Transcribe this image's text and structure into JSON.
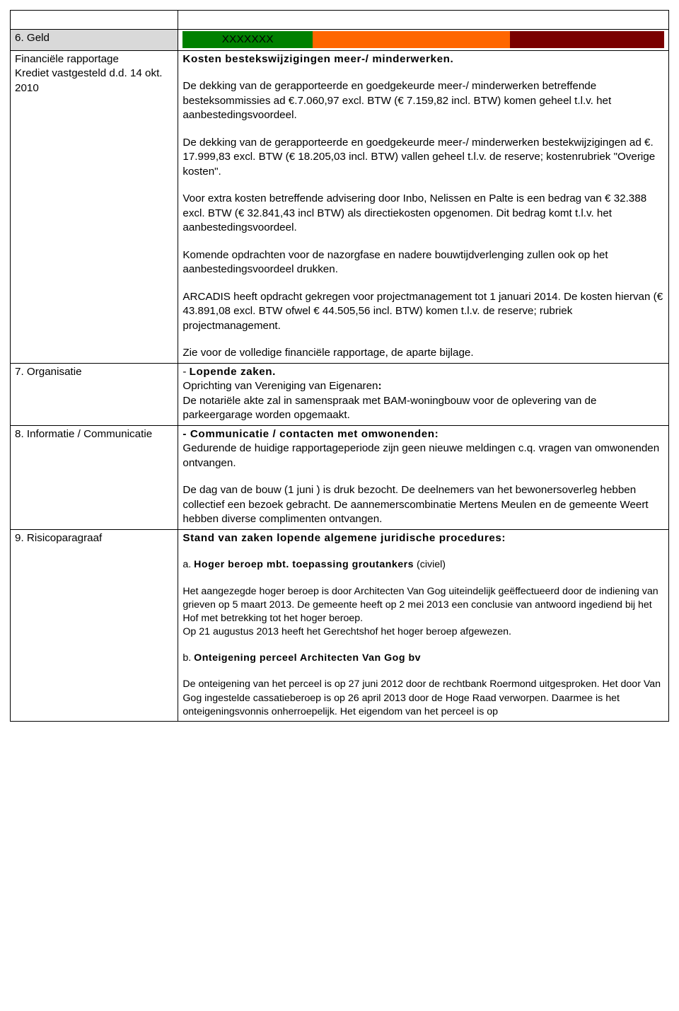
{
  "colors": {
    "header_row_bg": "#d9d9d9",
    "status_green": "#008000",
    "status_orange": "#ff6600",
    "status_darkred": "#7a0000",
    "border": "#000000"
  },
  "layout": {
    "status_widths_pct": [
      27,
      41,
      32
    ],
    "left_col_pct": 25.5
  },
  "rows": {
    "blank": {
      "left": "",
      "right": ""
    },
    "r6": {
      "left": "6. Geld",
      "status_label": "XXXXXXX"
    },
    "fin": {
      "left_lines": [
        "Financiële rapportage",
        "Krediet vastgesteld d.d. 14 okt. 2010"
      ],
      "title": "Kosten bestekswijzigingen meer-/ minderwerken.",
      "p1": "De dekking van de gerapporteerde en goedgekeurde meer-/ minderwerken betreffende besteksommissies ad €.7.060,97 excl. BTW (€ 7.159,82 incl. BTW) komen geheel t.l.v. het aanbestedingsvoordeel.",
      "p2": "De dekking van de gerapporteerde en goedgekeurde meer-/ minderwerken bestekwijzigingen ad €. 17.999,83 excl. BTW (€ 18.205,03 incl. BTW) vallen geheel t.l.v. de reserve; kostenrubriek \"Overige kosten\".",
      "p3": "Voor extra kosten betreffende advisering door Inbo, Nelissen en Palte  is een bedrag van  € 32.388 excl. BTW (€ 32.841,43 incl BTW) als directiekosten opgenomen. Dit bedrag komt t.l.v. het aanbestedingsvoordeel.",
      "p4": "Komende opdrachten voor de nazorgfase en nadere bouwtijdverlenging zullen ook op het aanbestedingsvoordeel drukken.",
      "p5": "ARCADIS heeft opdracht gekregen voor projectmanagement tot 1 januari 2014. De kosten hiervan (€ 43.891,08 excl. BTW ofwel € 44.505,56 incl. BTW) komen t.l.v. de reserve; rubriek projectmanagement.",
      "p6": "Zie voor de volledige financiële rapportage, de aparte bijlage."
    },
    "r7": {
      "left": "7. Organisatie",
      "bullet": "- ",
      "bold": "Lopende zaken.",
      "line2a": "Oprichting van Vereniging van Eigenaren",
      "line2b": ":",
      "line3": "De notariële akte zal in samenspraak met BAM-woningbouw voor de oplevering van de parkeergarage worden opgemaakt."
    },
    "r8": {
      "left": "8. Informatie / Communicatie",
      "bold_line": "- Communicatie /  contacten met omwonenden:",
      "p1": "Gedurende de huidige rapportageperiode zijn geen nieuwe meldingen c.q. vragen van omwonenden ontvangen.",
      "p2": "De dag van de bouw (1 juni ) is druk bezocht. De deelnemers van het bewonersoverleg hebben collectief een bezoek gebracht. De aannemerscombinatie Mertens Meulen en de gemeente Weert hebben diverse complimenten ontvangen."
    },
    "r9": {
      "left": "9. Risicoparagraaf",
      "title": "Stand van zaken lopende algemene juridische procedures:",
      "a_prefix": "a.   ",
      "a_bold": "Hoger beroep mbt. toepassing groutankers",
      "a_suffix": " (civiel)",
      "a_p1": "Het aangezegde hoger beroep is door Architecten Van Gog uiteindelijk geëffectueerd door de indiening van grieven op 5 maart 2013. De gemeente heeft op 2 mei 2013 een conclusie van antwoord ingediend bij het Hof met betrekking tot het hoger beroep.",
      "a_p2": "Op 21 augustus 2013 heeft het Gerechtshof het hoger beroep afgewezen.",
      "b_prefix": "b.   ",
      "b_bold": "Onteigening perceel Architecten Van Gog bv",
      "b_p1": "De onteigening van het perceel is op 27 juni 2012 door de rechtbank Roermond uitgesproken. Het door Van Gog ingestelde cassatieberoep is op 26 april 2013 door de Hoge Raad verworpen. Daarmee is het onteigeningsvonnis onherroepelijk. Het eigendom van het perceel is op"
    }
  }
}
